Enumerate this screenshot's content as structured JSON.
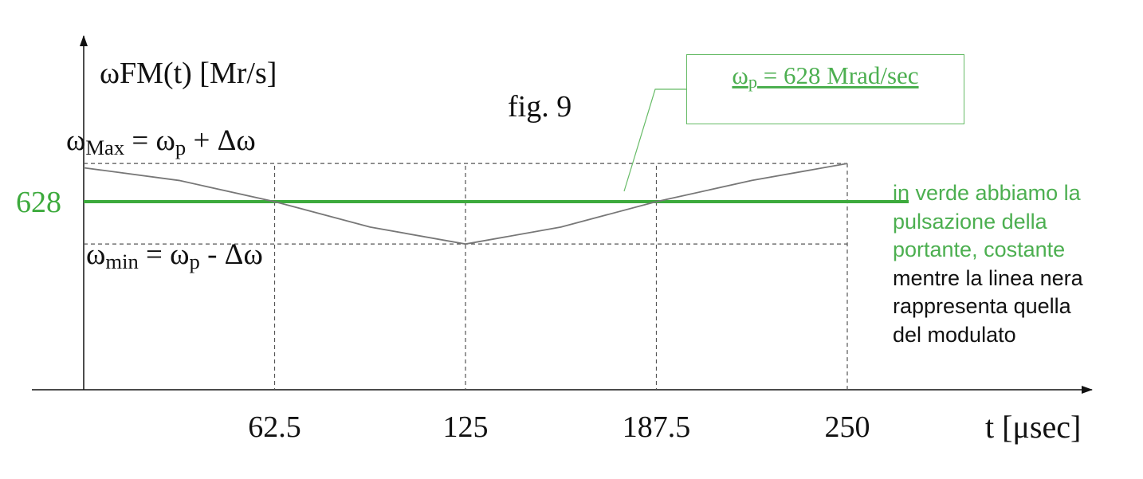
{
  "chart_data": {
    "type": "line",
    "title": "fig. 9",
    "ylabel": "ωFM(t) [Mr/s]",
    "xlabel": "t [μsec]",
    "x_ticks": [
      "62.5",
      "125",
      "187.5",
      "250"
    ],
    "xlim": [
      -6,
      290
    ],
    "ylim": [
      540,
      680
    ],
    "carrier": {
      "value": 628,
      "label": "628",
      "color": "#3daa3d"
    },
    "max_label": {
      "text": "ω",
      "sub": "Max",
      "rest": " = ω",
      "sub2": "p",
      "tail": " + Δω"
    },
    "min_label": {
      "text": "ω",
      "sub": "min",
      "rest": " = ω",
      "sub2": "p",
      "tail": " - Δω"
    },
    "series": [
      {
        "color": "#777777",
        "x": [
          0,
          31.25,
          62.5,
          93.75,
          125,
          156.25,
          187.5,
          218.75,
          250
        ],
        "y": [
          644,
          638,
          628,
          616,
          608,
          616,
          628,
          638,
          646
        ]
      }
    ],
    "max_level": 646,
    "min_level": 608,
    "vlines": [
      62.5,
      125,
      187.5,
      250
    ],
    "callout": {
      "omega": "ω",
      "sub": "p",
      "text": " = 628 Mrad/sec"
    },
    "note": {
      "green": [
        "in verde abbiamo la",
        "pulsazione della",
        "portante, costante"
      ],
      "dark": [
        "mentre la linea nera",
        "rappresenta quella",
        "del modulato"
      ]
    }
  }
}
